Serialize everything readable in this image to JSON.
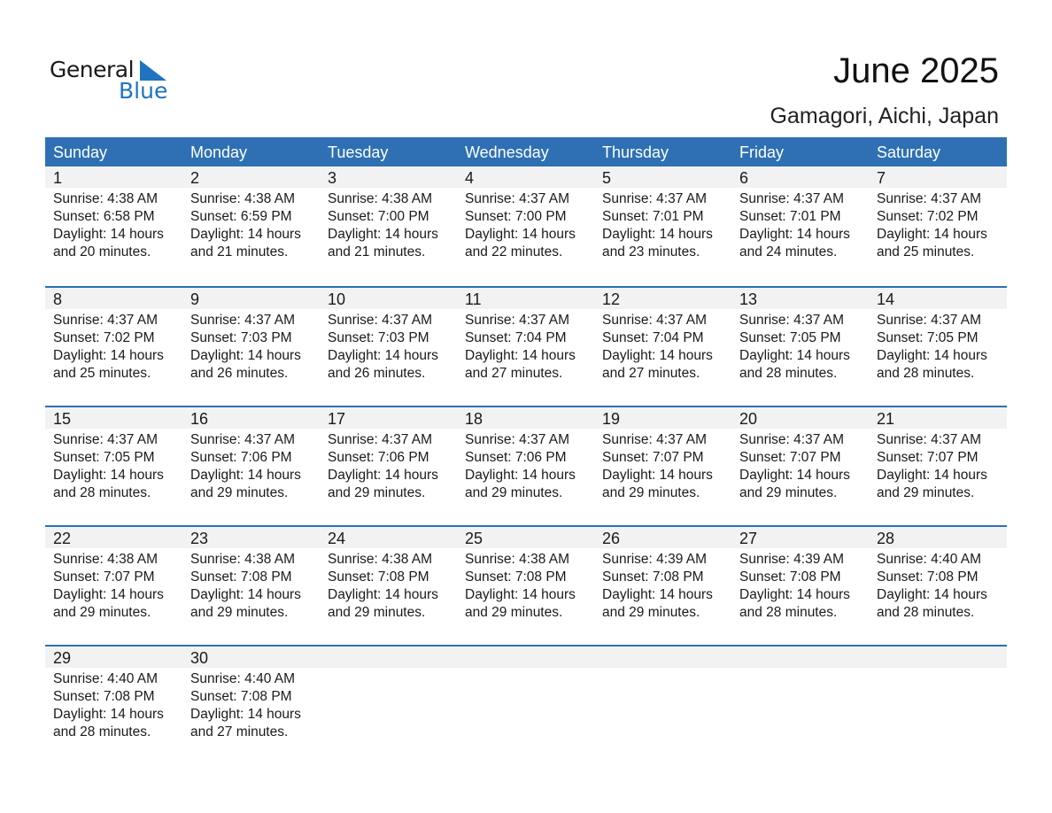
{
  "logo": {
    "line1": "General",
    "line2": "Blue"
  },
  "title": "June 2025",
  "subtitle": "Gamagori, Aichi, Japan",
  "colors": {
    "header": "#2e70b3",
    "band": "#f2f2f2",
    "logo_blue": "#1f73c0"
  },
  "weekdays": [
    "Sunday",
    "Monday",
    "Tuesday",
    "Wednesday",
    "Thursday",
    "Friday",
    "Saturday"
  ],
  "weeks": [
    [
      {
        "day": "1",
        "sunrise": "Sunrise: 4:38 AM",
        "sunset": "Sunset: 6:58 PM",
        "daylight": "Daylight: 14 hours",
        "minutes": "and 20 minutes."
      },
      {
        "day": "2",
        "sunrise": "Sunrise: 4:38 AM",
        "sunset": "Sunset: 6:59 PM",
        "daylight": "Daylight: 14 hours",
        "minutes": "and 21 minutes."
      },
      {
        "day": "3",
        "sunrise": "Sunrise: 4:38 AM",
        "sunset": "Sunset: 7:00 PM",
        "daylight": "Daylight: 14 hours",
        "minutes": "and 21 minutes."
      },
      {
        "day": "4",
        "sunrise": "Sunrise: 4:37 AM",
        "sunset": "Sunset: 7:00 PM",
        "daylight": "Daylight: 14 hours",
        "minutes": "and 22 minutes."
      },
      {
        "day": "5",
        "sunrise": "Sunrise: 4:37 AM",
        "sunset": "Sunset: 7:01 PM",
        "daylight": "Daylight: 14 hours",
        "minutes": "and 23 minutes."
      },
      {
        "day": "6",
        "sunrise": "Sunrise: 4:37 AM",
        "sunset": "Sunset: 7:01 PM",
        "daylight": "Daylight: 14 hours",
        "minutes": "and 24 minutes."
      },
      {
        "day": "7",
        "sunrise": "Sunrise: 4:37 AM",
        "sunset": "Sunset: 7:02 PM",
        "daylight": "Daylight: 14 hours",
        "minutes": "and 25 minutes."
      }
    ],
    [
      {
        "day": "8",
        "sunrise": "Sunrise: 4:37 AM",
        "sunset": "Sunset: 7:02 PM",
        "daylight": "Daylight: 14 hours",
        "minutes": "and 25 minutes."
      },
      {
        "day": "9",
        "sunrise": "Sunrise: 4:37 AM",
        "sunset": "Sunset: 7:03 PM",
        "daylight": "Daylight: 14 hours",
        "minutes": "and 26 minutes."
      },
      {
        "day": "10",
        "sunrise": "Sunrise: 4:37 AM",
        "sunset": "Sunset: 7:03 PM",
        "daylight": "Daylight: 14 hours",
        "minutes": "and 26 minutes."
      },
      {
        "day": "11",
        "sunrise": "Sunrise: 4:37 AM",
        "sunset": "Sunset: 7:04 PM",
        "daylight": "Daylight: 14 hours",
        "minutes": "and 27 minutes."
      },
      {
        "day": "12",
        "sunrise": "Sunrise: 4:37 AM",
        "sunset": "Sunset: 7:04 PM",
        "daylight": "Daylight: 14 hours",
        "minutes": "and 27 minutes."
      },
      {
        "day": "13",
        "sunrise": "Sunrise: 4:37 AM",
        "sunset": "Sunset: 7:05 PM",
        "daylight": "Daylight: 14 hours",
        "minutes": "and 28 minutes."
      },
      {
        "day": "14",
        "sunrise": "Sunrise: 4:37 AM",
        "sunset": "Sunset: 7:05 PM",
        "daylight": "Daylight: 14 hours",
        "minutes": "and 28 minutes."
      }
    ],
    [
      {
        "day": "15",
        "sunrise": "Sunrise: 4:37 AM",
        "sunset": "Sunset: 7:05 PM",
        "daylight": "Daylight: 14 hours",
        "minutes": "and 28 minutes."
      },
      {
        "day": "16",
        "sunrise": "Sunrise: 4:37 AM",
        "sunset": "Sunset: 7:06 PM",
        "daylight": "Daylight: 14 hours",
        "minutes": "and 29 minutes."
      },
      {
        "day": "17",
        "sunrise": "Sunrise: 4:37 AM",
        "sunset": "Sunset: 7:06 PM",
        "daylight": "Daylight: 14 hours",
        "minutes": "and 29 minutes."
      },
      {
        "day": "18",
        "sunrise": "Sunrise: 4:37 AM",
        "sunset": "Sunset: 7:06 PM",
        "daylight": "Daylight: 14 hours",
        "minutes": "and 29 minutes."
      },
      {
        "day": "19",
        "sunrise": "Sunrise: 4:37 AM",
        "sunset": "Sunset: 7:07 PM",
        "daylight": "Daylight: 14 hours",
        "minutes": "and 29 minutes."
      },
      {
        "day": "20",
        "sunrise": "Sunrise: 4:37 AM",
        "sunset": "Sunset: 7:07 PM",
        "daylight": "Daylight: 14 hours",
        "minutes": "and 29 minutes."
      },
      {
        "day": "21",
        "sunrise": "Sunrise: 4:37 AM",
        "sunset": "Sunset: 7:07 PM",
        "daylight": "Daylight: 14 hours",
        "minutes": "and 29 minutes."
      }
    ],
    [
      {
        "day": "22",
        "sunrise": "Sunrise: 4:38 AM",
        "sunset": "Sunset: 7:07 PM",
        "daylight": "Daylight: 14 hours",
        "minutes": "and 29 minutes."
      },
      {
        "day": "23",
        "sunrise": "Sunrise: 4:38 AM",
        "sunset": "Sunset: 7:08 PM",
        "daylight": "Daylight: 14 hours",
        "minutes": "and 29 minutes."
      },
      {
        "day": "24",
        "sunrise": "Sunrise: 4:38 AM",
        "sunset": "Sunset: 7:08 PM",
        "daylight": "Daylight: 14 hours",
        "minutes": "and 29 minutes."
      },
      {
        "day": "25",
        "sunrise": "Sunrise: 4:38 AM",
        "sunset": "Sunset: 7:08 PM",
        "daylight": "Daylight: 14 hours",
        "minutes": "and 29 minutes."
      },
      {
        "day": "26",
        "sunrise": "Sunrise: 4:39 AM",
        "sunset": "Sunset: 7:08 PM",
        "daylight": "Daylight: 14 hours",
        "minutes": "and 29 minutes."
      },
      {
        "day": "27",
        "sunrise": "Sunrise: 4:39 AM",
        "sunset": "Sunset: 7:08 PM",
        "daylight": "Daylight: 14 hours",
        "minutes": "and 28 minutes."
      },
      {
        "day": "28",
        "sunrise": "Sunrise: 4:40 AM",
        "sunset": "Sunset: 7:08 PM",
        "daylight": "Daylight: 14 hours",
        "minutes": "and 28 minutes."
      }
    ],
    [
      {
        "day": "29",
        "sunrise": "Sunrise: 4:40 AM",
        "sunset": "Sunset: 7:08 PM",
        "daylight": "Daylight: 14 hours",
        "minutes": "and 28 minutes."
      },
      {
        "day": "30",
        "sunrise": "Sunrise: 4:40 AM",
        "sunset": "Sunset: 7:08 PM",
        "daylight": "Daylight: 14 hours",
        "minutes": "and 27 minutes."
      }
    ]
  ]
}
